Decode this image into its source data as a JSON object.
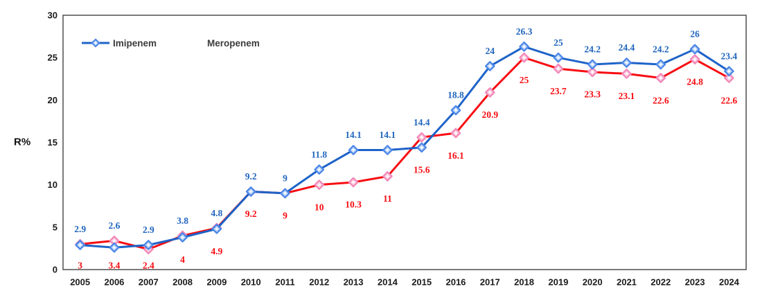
{
  "chart_data": {
    "type": "line",
    "title": "",
    "xlabel": "",
    "ylabel": "R%",
    "categories": [
      "2005",
      "2006",
      "2007",
      "2008",
      "2009",
      "2010",
      "2011",
      "2012",
      "2013",
      "2014",
      "2015",
      "2016",
      "2017",
      "2018",
      "2019",
      "2020",
      "2021",
      "2022",
      "2023",
      "2024"
    ],
    "yticks": [
      0,
      5,
      10,
      15,
      20,
      25,
      30
    ],
    "ylim": [
      0,
      30
    ],
    "grid": false,
    "legend_position": "top-left-inside",
    "axis_color": "#595959",
    "tick_label_color": "#1a1a1a",
    "legend_text_color": "#3b3b3b",
    "series": [
      {
        "name": "Imipenem",
        "line_color": "#F70D12",
        "marker_border": "#F287B8",
        "marker_fill": "#FAD0E2",
        "label_color": "#F70D12",
        "label_placement": "below",
        "values": [
          3,
          3.4,
          2.4,
          4,
          4.9,
          9.2,
          9,
          10,
          10.3,
          11,
          15.6,
          16.1,
          20.9,
          25,
          23.7,
          23.3,
          23.1,
          22.6,
          24.8,
          22.6
        ]
      },
      {
        "name": "Meropenem",
        "line_color": "#1E63C8",
        "marker_border": "#4A86E8",
        "marker_fill": "#BFD7F5",
        "label_color": "#2166BE",
        "label_placement": "above",
        "values": [
          2.9,
          2.6,
          2.9,
          3.8,
          4.8,
          9.2,
          9,
          11.8,
          14.1,
          14.1,
          14.4,
          18.8,
          24,
          26.3,
          25,
          24.2,
          24.4,
          24.2,
          26,
          23.4
        ]
      }
    ]
  }
}
